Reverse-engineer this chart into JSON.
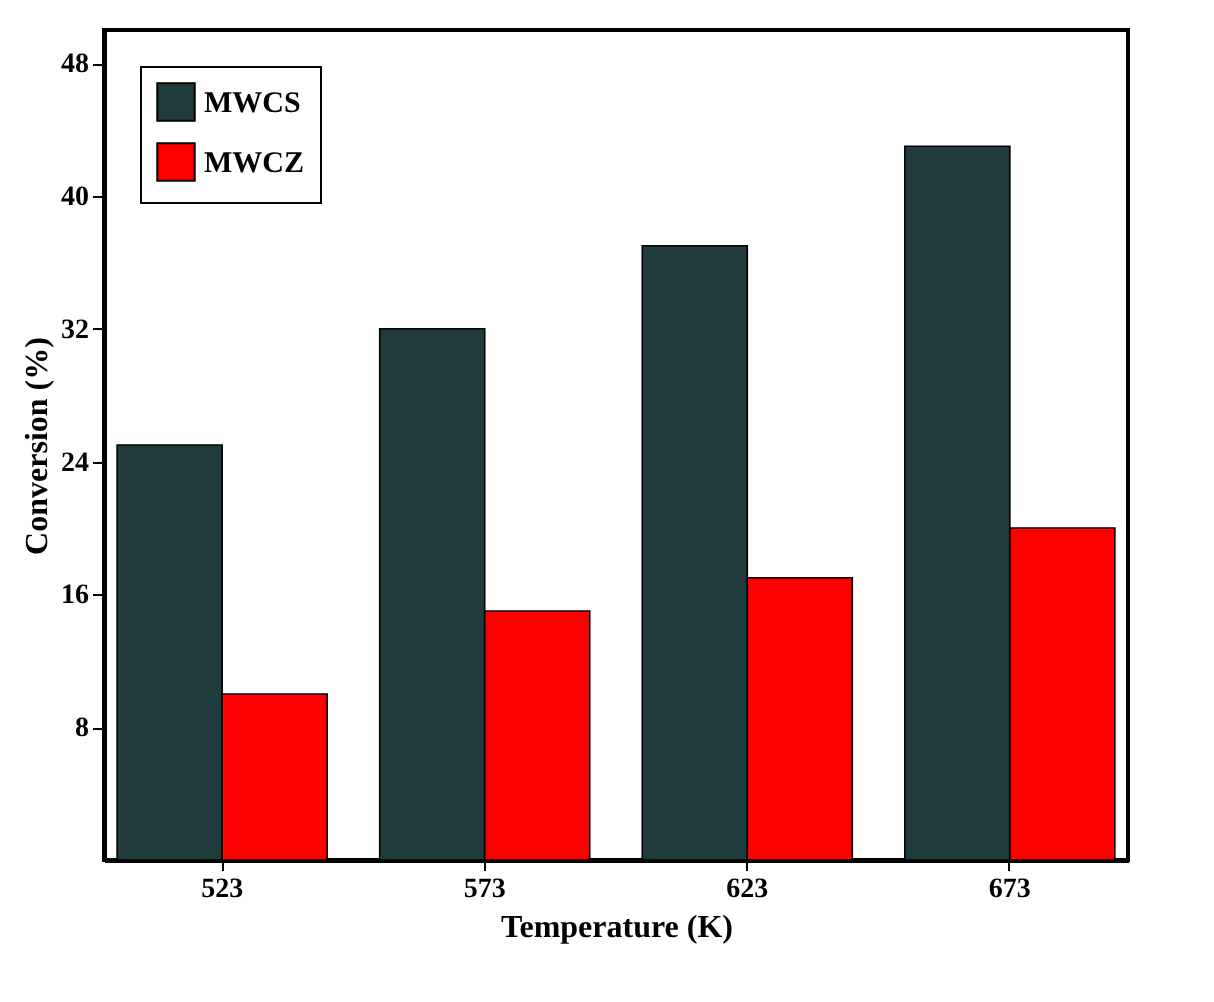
{
  "chart_data": {
    "type": "bar",
    "xlabel": "Temperature (K)",
    "ylabel": "Conversion (%)",
    "categories": [
      "523",
      "573",
      "623",
      "673"
    ],
    "series": [
      {
        "name": "MWCS",
        "color": "#1f3b3b",
        "values": [
          25,
          32,
          37,
          43
        ]
      },
      {
        "name": "MWCZ",
        "color": "#ff0000",
        "values": [
          10,
          15,
          17,
          20
        ]
      }
    ],
    "ylim": [
      0,
      50
    ],
    "yticks": [
      8,
      16,
      24,
      32,
      40,
      48
    ],
    "grid": false,
    "legend": "top left"
  }
}
